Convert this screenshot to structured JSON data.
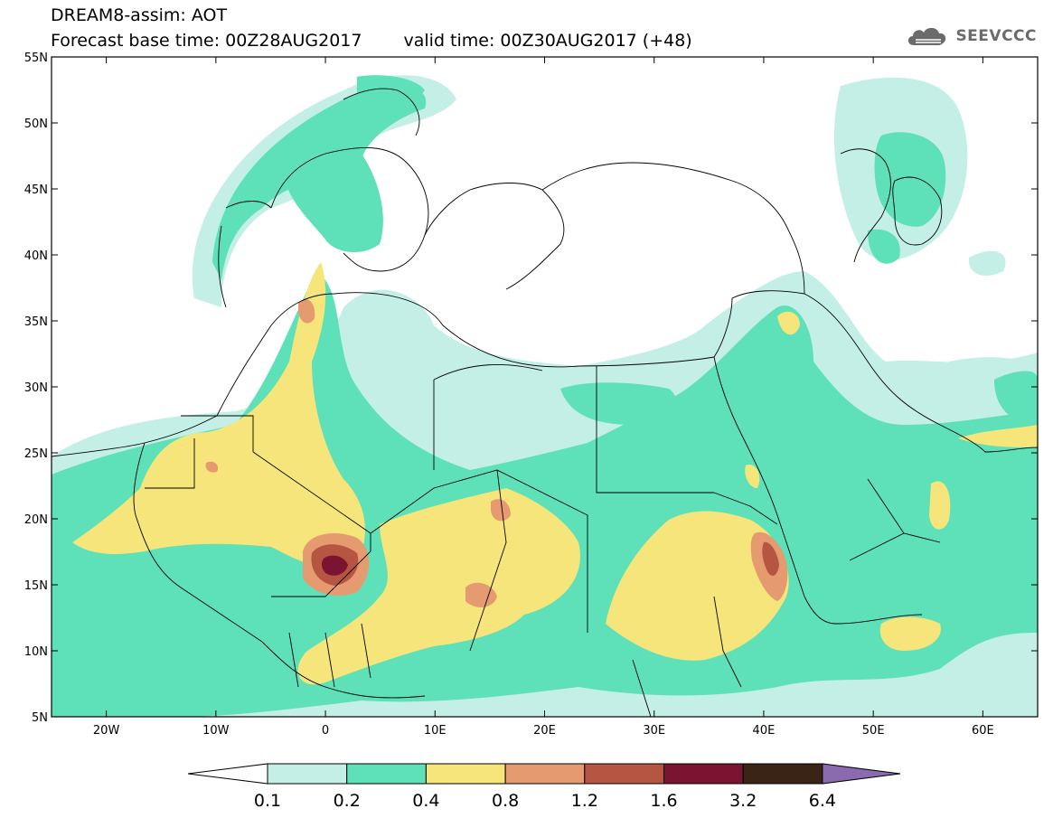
{
  "header": {
    "title_line_1": "DREAM8-assim: AOT",
    "base_time": "Forecast base time: 00Z28AUG2017",
    "valid_time": "valid time: 00Z30AUG2017 (+48)",
    "logo_text": "SEEVCCC",
    "logo_icon": "cloud-icon"
  },
  "map": {
    "lon_range": [
      -25,
      65
    ],
    "lat_range": [
      5,
      55
    ],
    "lon_ticks": [
      {
        "value": -20,
        "label": "20W"
      },
      {
        "value": -10,
        "label": "10W"
      },
      {
        "value": 0,
        "label": "0"
      },
      {
        "value": 10,
        "label": "10E"
      },
      {
        "value": 20,
        "label": "20E"
      },
      {
        "value": 30,
        "label": "30E"
      },
      {
        "value": 40,
        "label": "40E"
      },
      {
        "value": 50,
        "label": "50E"
      },
      {
        "value": 60,
        "label": "60E"
      }
    ],
    "lat_ticks": [
      {
        "value": 55,
        "label": "55N"
      },
      {
        "value": 50,
        "label": "50N"
      },
      {
        "value": 45,
        "label": "45N"
      },
      {
        "value": 40,
        "label": "40N"
      },
      {
        "value": 35,
        "label": "35N"
      },
      {
        "value": 30,
        "label": "30N"
      },
      {
        "value": 25,
        "label": "25N"
      },
      {
        "value": 20,
        "label": "20N"
      },
      {
        "value": 15,
        "label": "15N"
      },
      {
        "value": 10,
        "label": "10N"
      },
      {
        "value": 5,
        "label": "5N"
      }
    ]
  },
  "colorbar": {
    "levels": [
      "0.1",
      "0.2",
      "0.4",
      "0.8",
      "1.2",
      "1.6",
      "3.2",
      "6.4"
    ],
    "under_color": "#ffffff",
    "colors": [
      "#c4efe6",
      "#5ee0b8",
      "#f5e57a",
      "#e59b6f",
      "#b55642",
      "#7a1430",
      "#3a2416"
    ],
    "over_color": "#8c6ab0"
  },
  "colors": {
    "aot_0_1": "#c4efe6",
    "aot_0_2": "#5ee0b8",
    "aot_0_4": "#f5e57a",
    "aot_0_8": "#e59b6f",
    "aot_1_2": "#b55642",
    "aot_1_6": "#7a1430",
    "aot_3_2": "#3a2416",
    "aot_over": "#8c6ab0",
    "logo_gray": "#6b6b6b"
  }
}
